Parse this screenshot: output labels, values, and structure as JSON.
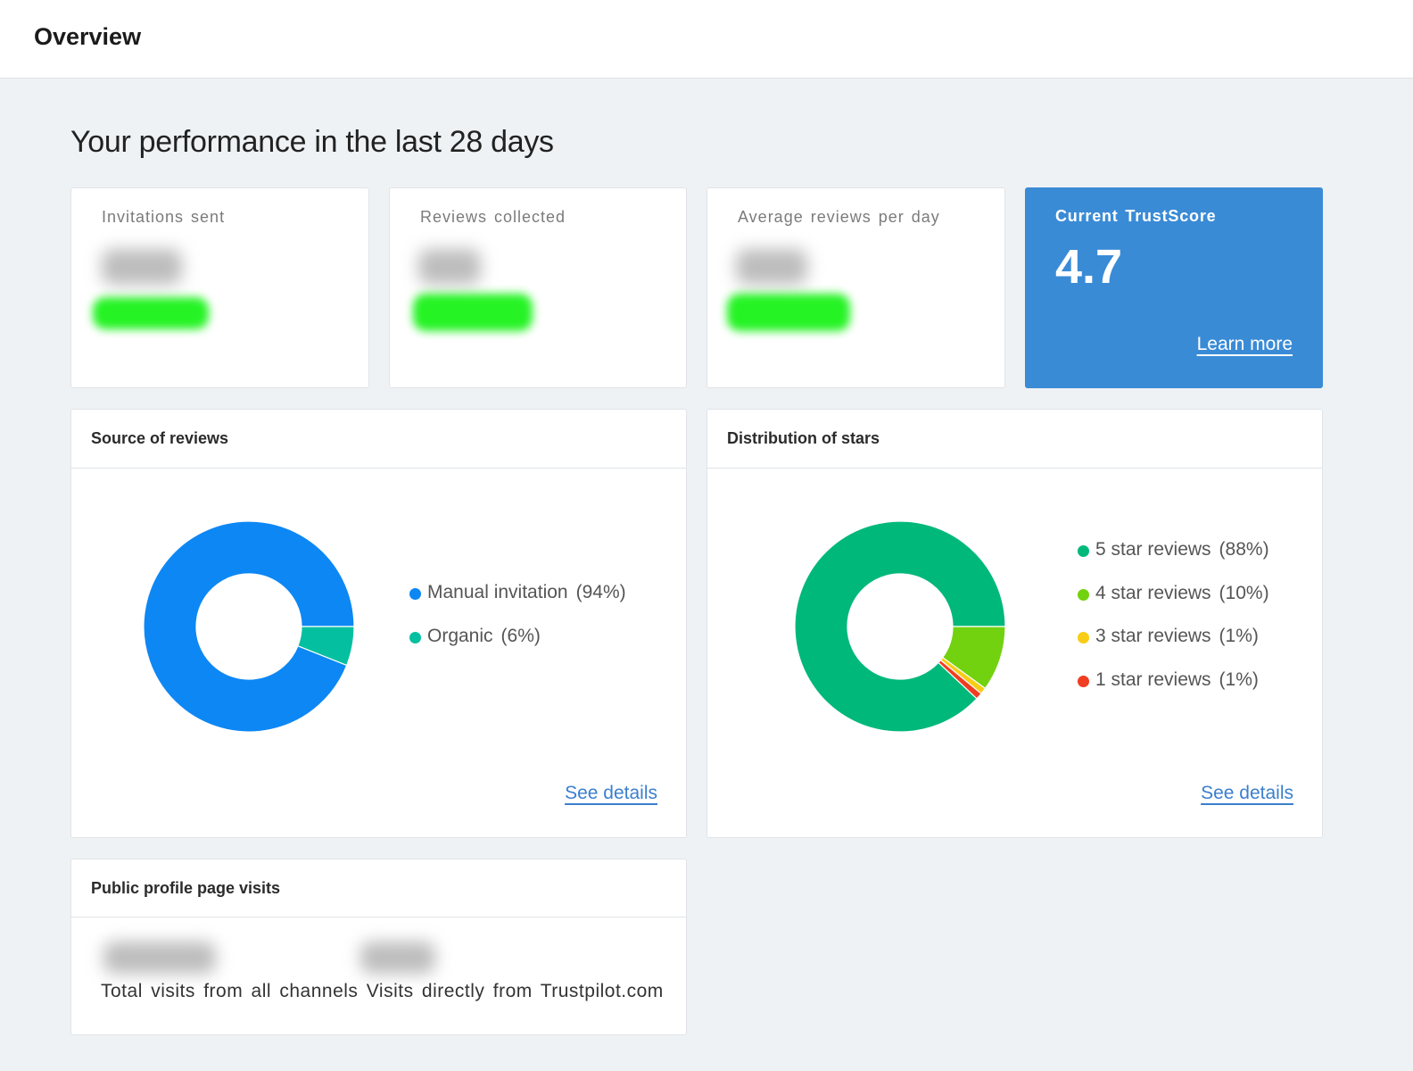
{
  "header": {
    "title": "Overview"
  },
  "headline": "Your performance in the last 28 days",
  "stats": {
    "invitations_label": "Invitations sent",
    "reviews_label": "Reviews collected",
    "average_label": "Average reviews per day",
    "trustscore_label": "Current TrustScore",
    "trustscore_value": "4.7",
    "learn_more": "Learn more"
  },
  "source_panel": {
    "title": "Source of reviews",
    "see_details": "See details"
  },
  "stars_panel": {
    "title": "Distribution of stars",
    "see_details": "See details"
  },
  "visits_panel": {
    "title": "Public profile page visits",
    "total_label": "Total visits from all channels",
    "direct_label": "Visits directly from Trustpilot.com"
  },
  "chart_data": [
    {
      "type": "pie",
      "title": "Source of reviews",
      "variant": "donut",
      "slices": [
        {
          "label": "Manual invitation",
          "pct_label": "(94%)",
          "value": 94,
          "color": "#0d87f4"
        },
        {
          "label": "Organic",
          "pct_label": "(6%)",
          "value": 6,
          "color": "#05c0a0"
        }
      ]
    },
    {
      "type": "pie",
      "title": "Distribution of stars",
      "variant": "donut",
      "slices": [
        {
          "label": "5 star reviews",
          "pct_label": "(88%)",
          "value": 88,
          "color": "#01b87b"
        },
        {
          "label": "4 star reviews",
          "pct_label": "(10%)",
          "value": 10,
          "color": "#72d20f"
        },
        {
          "label": "3 star reviews",
          "pct_label": "(1%)",
          "value": 1,
          "color": "#f7cd16"
        },
        {
          "label": "1 star reviews",
          "pct_label": "(1%)",
          "value": 1,
          "color": "#f03e22"
        }
      ]
    }
  ]
}
